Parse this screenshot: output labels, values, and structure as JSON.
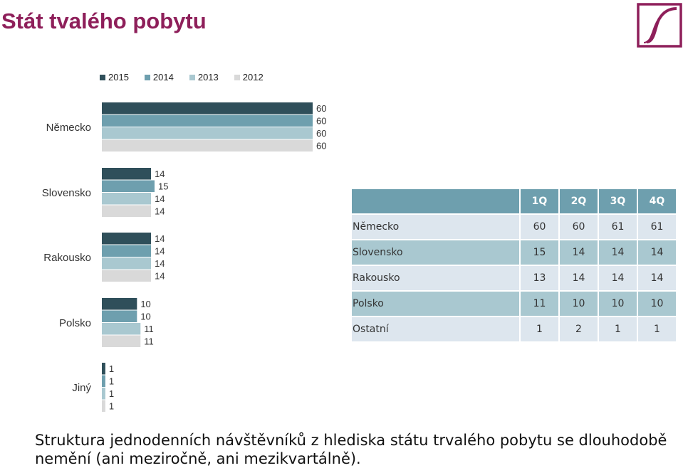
{
  "title": "Stát tvalého pobytu",
  "caption": "Struktura jednodenních návštěvníků z hlediska státu trvalého pobytu se dlouhodobě nemění (ani meziročně, ani mezikvartálně).",
  "colors": {
    "title": "#8e1f5a",
    "series": [
      "#2f4f5a",
      "#6e9fae",
      "#a9c8d0",
      "#d9d9d9"
    ],
    "table_header": "#6e9fae",
    "table_row_a": "#a9c8d0",
    "table_row_b": "#dde6ee"
  },
  "chart_data": {
    "type": "bar",
    "orientation": "horizontal",
    "categories": [
      "Německo",
      "Slovensko",
      "Rakousko",
      "Polsko",
      "Jiný"
    ],
    "series": [
      {
        "name": "2015",
        "values": [
          60,
          14,
          14,
          10,
          1
        ]
      },
      {
        "name": "2014",
        "values": [
          60,
          15,
          14,
          10,
          1
        ]
      },
      {
        "name": "2013",
        "values": [
          60,
          14,
          14,
          11,
          1
        ]
      },
      {
        "name": "2012",
        "values": [
          60,
          14,
          14,
          11,
          1
        ]
      }
    ],
    "xlim": [
      0,
      60
    ],
    "legend": "top",
    "grid": false
  },
  "table": {
    "headers": [
      "1Q",
      "2Q",
      "3Q",
      "4Q"
    ],
    "rows": [
      {
        "label": "Německo",
        "values": [
          "60",
          "60",
          "61",
          "61"
        ]
      },
      {
        "label": "Slovensko",
        "values": [
          "15",
          "14",
          "14",
          "14"
        ]
      },
      {
        "label": "Rakousko",
        "values": [
          "13",
          "14",
          "14",
          "14"
        ]
      },
      {
        "label": "Polsko",
        "values": [
          "11",
          "10",
          "10",
          "10"
        ]
      },
      {
        "label": "Ostatní",
        "values": [
          "1",
          "2",
          "1",
          "1"
        ]
      }
    ]
  }
}
